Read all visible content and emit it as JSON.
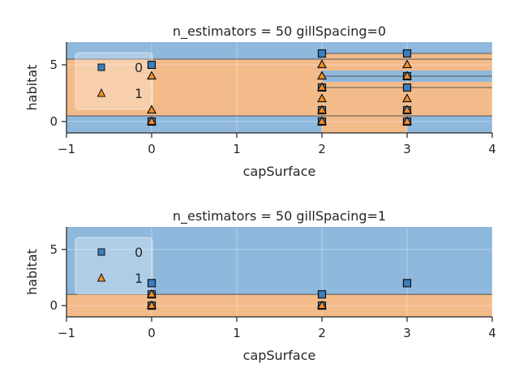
{
  "colors": {
    "blue_region": "#8eb8dc",
    "orange_region": "#f4bb8a",
    "class0_marker": "#3a7fc1",
    "class1_marker": "#f28e2b",
    "boundary": "#555555"
  },
  "chart_data": [
    {
      "type": "scatter",
      "title": "n_estimators = 50 gillSpacing=0",
      "xlabel": "capSurface",
      "ylabel": "habitat",
      "xlim": [
        -1,
        4
      ],
      "ylim": [
        -1,
        7
      ],
      "xticks": [
        -1,
        0,
        1,
        2,
        3,
        4
      ],
      "yticks": [
        0,
        5
      ],
      "grid": true,
      "legend_position": "top-left",
      "regions": [
        {
          "x0": -1,
          "x1": 4,
          "y0": 5.5,
          "y1": 7,
          "class": "0"
        },
        {
          "x0": -1,
          "x1": 2,
          "y0": 0.5,
          "y1": 5.5,
          "class": "1"
        },
        {
          "x0": -1,
          "x1": 2,
          "y0": -1,
          "y1": 0.5,
          "class": "0"
        },
        {
          "x0": 2,
          "x1": 4,
          "y0": 4.5,
          "y1": 6.0,
          "class": "1"
        },
        {
          "x0": 2,
          "x1": 4,
          "y0": 3.5,
          "y1": 4.5,
          "class": "0"
        },
        {
          "x0": 2,
          "x1": 4,
          "y0": 2.5,
          "y1": 3.5,
          "class": "1"
        },
        {
          "x0": 2,
          "x1": 4,
          "y0": 0.5,
          "y1": 2.5,
          "class": "1"
        },
        {
          "x0": 2,
          "x1": 4,
          "y0": -1,
          "y1": 0.5,
          "class": "0"
        },
        {
          "x0": 2,
          "x1": 3,
          "y0": -1,
          "y1": 0.5,
          "class": "1"
        }
      ],
      "boundaries_y": [
        [
          -1,
          4,
          5.5
        ],
        [
          -1,
          4,
          0.5
        ],
        [
          2,
          4,
          6.0
        ],
        [
          2,
          4,
          4.0
        ],
        [
          2,
          4,
          3.0
        ]
      ],
      "series": [
        {
          "name": "0",
          "marker": "square",
          "points": [
            [
              0,
              5
            ],
            [
              0,
              0
            ],
            [
              2,
              6
            ],
            [
              2,
              3
            ],
            [
              2,
              1
            ],
            [
              2,
              0
            ],
            [
              3,
              6
            ],
            [
              3,
              4
            ],
            [
              3,
              3
            ],
            [
              3,
              1
            ],
            [
              3,
              0
            ]
          ]
        },
        {
          "name": "1",
          "marker": "triangle",
          "points": [
            [
              0,
              4
            ],
            [
              0,
              1
            ],
            [
              0,
              0
            ],
            [
              2,
              5
            ],
            [
              2,
              4
            ],
            [
              2,
              3
            ],
            [
              2,
              2
            ],
            [
              2,
              1
            ],
            [
              2,
              0
            ],
            [
              3,
              5
            ],
            [
              3,
              4
            ],
            [
              3,
              2
            ],
            [
              3,
              1
            ],
            [
              3,
              0
            ]
          ]
        }
      ]
    },
    {
      "type": "scatter",
      "title": "n_estimators = 50 gillSpacing=1",
      "xlabel": "capSurface",
      "ylabel": "habitat",
      "xlim": [
        -1,
        4
      ],
      "ylim": [
        -1,
        7
      ],
      "xticks": [
        -1,
        0,
        1,
        2,
        3,
        4
      ],
      "yticks": [
        0,
        5
      ],
      "grid": true,
      "legend_position": "top-left",
      "regions": [
        {
          "x0": -1,
          "x1": 4,
          "y0": 1.0,
          "y1": 7,
          "class": "0"
        },
        {
          "x0": -1,
          "x1": 4,
          "y0": -1,
          "y1": 1.0,
          "class": "1"
        }
      ],
      "boundaries_y": [
        [
          -1,
          4,
          1.0
        ]
      ],
      "series": [
        {
          "name": "0",
          "marker": "square",
          "points": [
            [
              0,
              2
            ],
            [
              0,
              1
            ],
            [
              0,
              0
            ],
            [
              2,
              1
            ],
            [
              2,
              0
            ],
            [
              3,
              2
            ]
          ]
        },
        {
          "name": "1",
          "marker": "triangle",
          "points": [
            [
              0,
              1
            ],
            [
              0,
              0
            ],
            [
              2,
              0
            ]
          ]
        }
      ]
    }
  ]
}
